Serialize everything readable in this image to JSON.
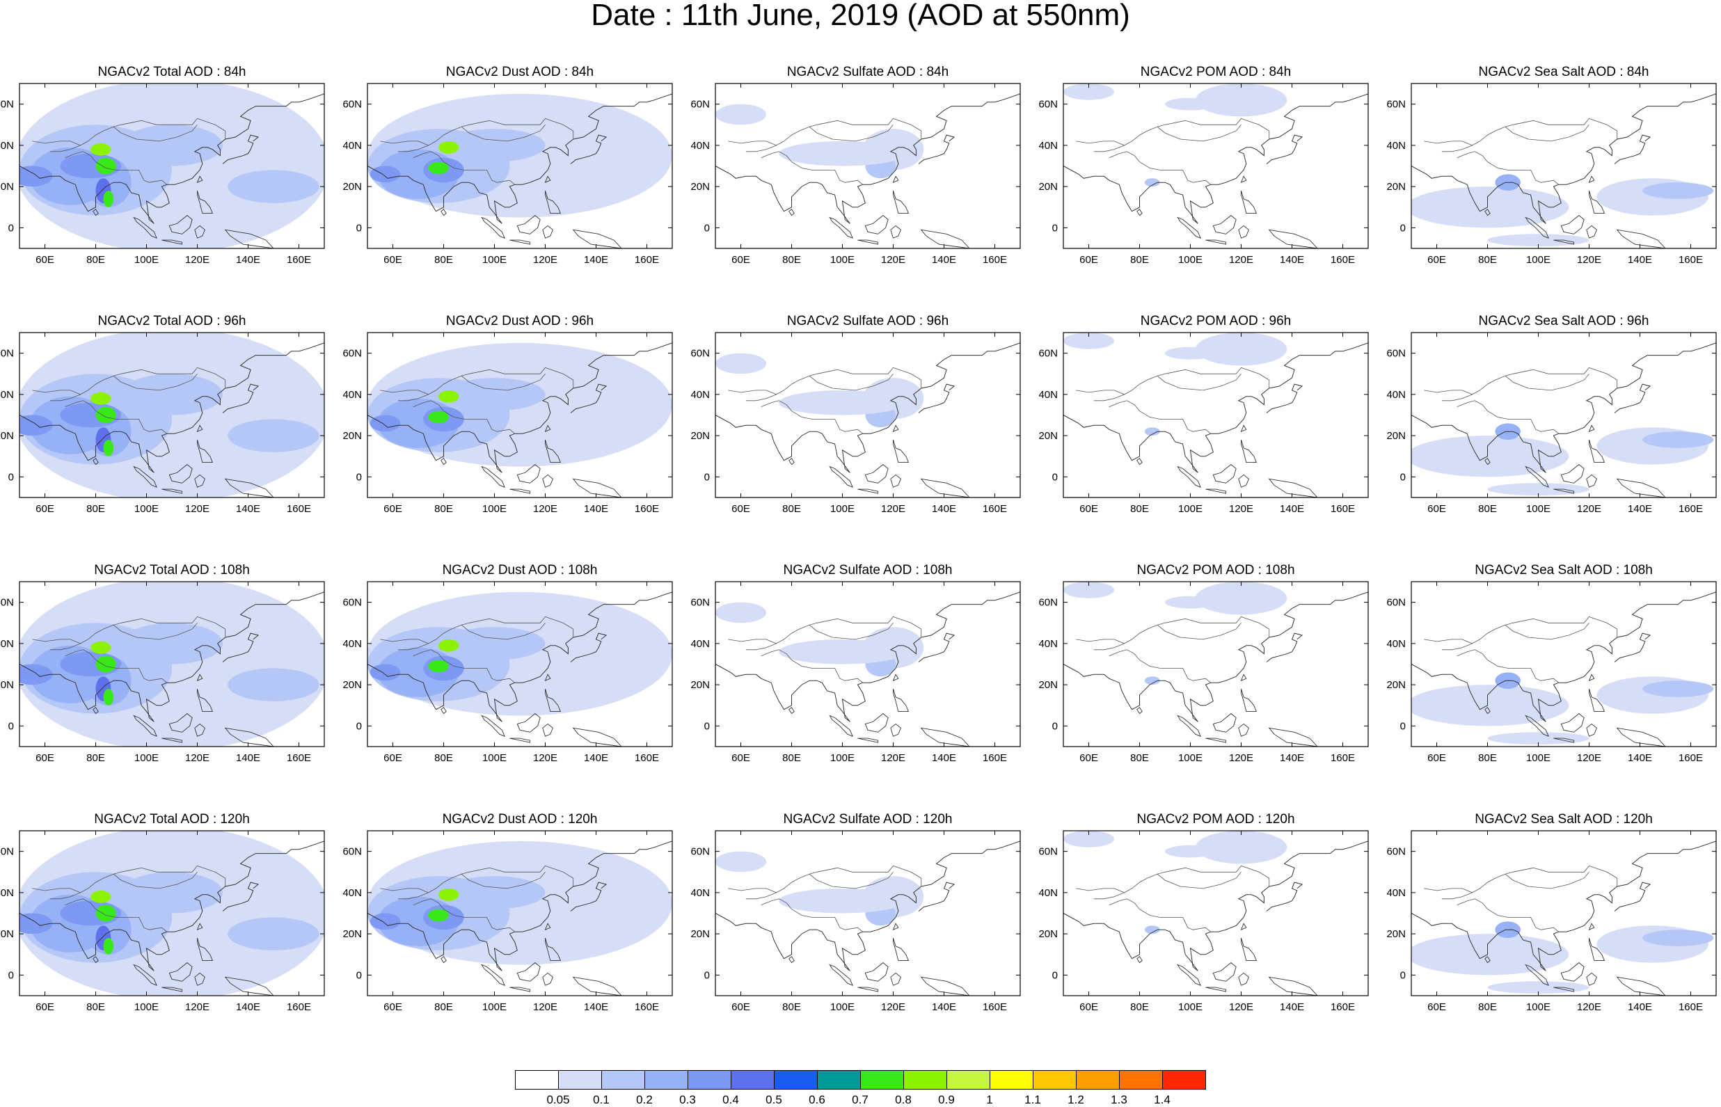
{
  "title": "Date : 11th June, 2019 (AOD at 550nm)",
  "panels": [
    {
      "title": "NGACv2 Total AOD : 84h",
      "type": "total"
    },
    {
      "title": "NGACv2 Dust AOD : 84h",
      "type": "dust"
    },
    {
      "title": "NGACv2 Sulfate AOD : 84h",
      "type": "sulfate"
    },
    {
      "title": "NGACv2 POM AOD : 84h",
      "type": "pom"
    },
    {
      "title": "NGACv2 Sea Salt AOD : 84h",
      "type": "seasalt"
    },
    {
      "title": "NGACv2 Total AOD : 96h",
      "type": "total"
    },
    {
      "title": "NGACv2 Dust AOD : 96h",
      "type": "dust"
    },
    {
      "title": "NGACv2 Sulfate AOD : 96h",
      "type": "sulfate"
    },
    {
      "title": "NGACv2 POM AOD : 96h",
      "type": "pom"
    },
    {
      "title": "NGACv2 Sea Salt AOD : 96h",
      "type": "seasalt"
    },
    {
      "title": "NGACv2 Total AOD : 108h",
      "type": "total"
    },
    {
      "title": "NGACv2 Dust AOD : 108h",
      "type": "dust"
    },
    {
      "title": "NGACv2 Sulfate AOD : 108h",
      "type": "sulfate"
    },
    {
      "title": "NGACv2 POM AOD : 108h",
      "type": "pom"
    },
    {
      "title": "NGACv2 Sea Salt AOD : 108h",
      "type": "seasalt"
    },
    {
      "title": "NGACv2 Total AOD : 120h",
      "type": "total"
    },
    {
      "title": "NGACv2 Dust AOD : 120h",
      "type": "dust"
    },
    {
      "title": "NGACv2 Sulfate AOD : 120h",
      "type": "sulfate"
    },
    {
      "title": "NGACv2 POM AOD : 120h",
      "type": "pom"
    },
    {
      "title": "NGACv2 Sea Salt  AOD : 120h",
      "type": "seasalt"
    }
  ],
  "lon_ticks": [
    "60E",
    "80E",
    "100E",
    "120E",
    "140E",
    "160E"
  ],
  "lat_ticks": [
    "60N",
    "40N",
    "20N",
    "0"
  ],
  "colorbar": {
    "labels": [
      "0.05",
      "0.1",
      "0.2",
      "0.3",
      "0.4",
      "0.5",
      "0.6",
      "0.7",
      "0.8",
      "0.9",
      "1",
      "1.1",
      "1.2",
      "1.3",
      "1.4"
    ],
    "colors": [
      "#ffffff",
      "#d6def7",
      "#b4c7f7",
      "#96b1f6",
      "#7d99f3",
      "#5e70ee",
      "#1a5cf0",
      "#00999a",
      "#39e818",
      "#8bf200",
      "#c6f53f",
      "#ffff00",
      "#ffc800",
      "#ffa000",
      "#ff7300",
      "#ff2600"
    ]
  }
}
